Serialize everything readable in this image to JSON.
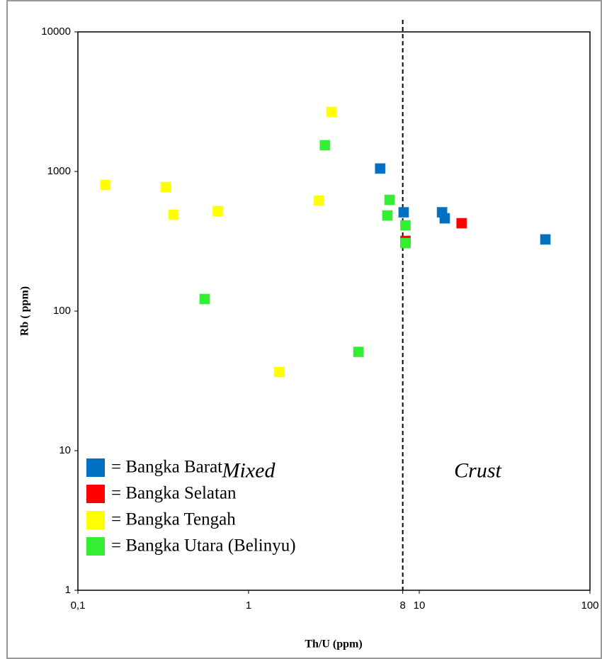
{
  "chart_data": {
    "type": "scatter",
    "x_label": "Th/U (ppm)",
    "y_label": "Rb ( ppm)",
    "log_x": true,
    "log_y": true,
    "xlim": [
      0.1,
      100
    ],
    "ylim": [
      1,
      10000
    ],
    "xticks": [
      {
        "value": 0.1,
        "label": "0,1"
      },
      1,
      8,
      10,
      100
    ],
    "yticks": [
      1,
      10,
      100,
      1000,
      10000
    ],
    "reference_line_x": 8,
    "annotations": [
      {
        "text": "Mixed",
        "x": 1,
        "y": 7
      },
      {
        "text": "Crust",
        "x": 22,
        "y": 7
      }
    ],
    "legend": "lower left",
    "series": [
      {
        "name": "= Bangka Barat",
        "color": "#0070c0",
        "x": [
          5.9,
          8.1,
          13.6,
          14.1,
          54.8
        ],
        "values": [
          1050,
          510,
          510,
          462,
          326
        ]
      },
      {
        "name": "= Bangka Selatan",
        "color": "#ff0000",
        "x": [
          17.7,
          8.3
        ],
        "values": [
          426,
          318
        ]
      },
      {
        "name": "= Bangka Tengah",
        "color": "#ffff00",
        "x": [
          0.145,
          0.327,
          0.363,
          0.66,
          2.58,
          3.06,
          1.51
        ],
        "values": [
          801,
          773,
          490,
          520,
          619,
          2670,
          36.6
        ]
      },
      {
        "name": "= Bangka Utara (Belinyu)",
        "color": "#33ee33",
        "x": [
          2.8,
          6.7,
          6.5,
          8.3,
          8.3,
          0.553,
          4.4
        ],
        "values": [
          1542,
          626,
          484,
          411,
          307,
          122,
          51
        ]
      }
    ]
  }
}
